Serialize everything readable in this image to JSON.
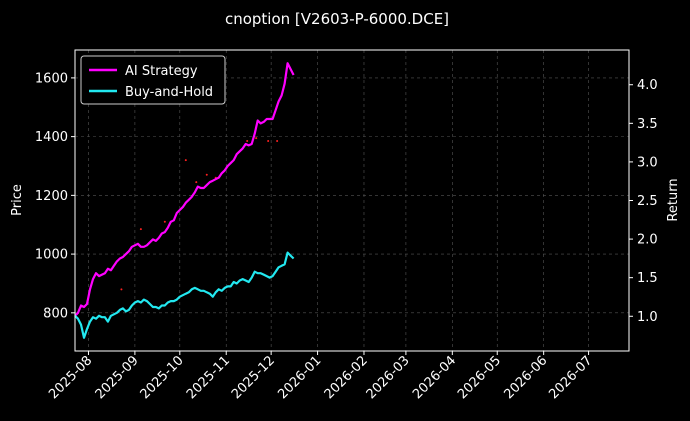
{
  "chart_data": {
    "type": "line",
    "title": "cnoption [V2603-P-6000.DCE]",
    "ylabel_left": "Price",
    "ylabel_right": "Return",
    "xlim": [
      "2025-07-23",
      "2026-07-28"
    ],
    "ylim_left": [
      670,
      1695
    ],
    "ylim_right": [
      0.55,
      4.45
    ],
    "x_ticks": [
      "2025-08",
      "2025-09",
      "2025-10",
      "2025-11",
      "2025-12",
      "2026-01",
      "2026-02",
      "2026-03",
      "2026-04",
      "2026-05",
      "2026-06",
      "2026-07"
    ],
    "y_ticks_left": [
      800,
      1000,
      1200,
      1400,
      1600
    ],
    "y_ticks_right": [
      "1.0",
      "1.5",
      "2.0",
      "2.5",
      "3.0",
      "3.5",
      "4.0"
    ],
    "grid": true,
    "legend_position": "top-left",
    "colors": {
      "ai": "#ff00ff",
      "bh": "#22e8f0",
      "scatter": "#ff2020",
      "grid": "#555555",
      "axes": "#ffffff",
      "background": "#000000"
    },
    "series": [
      {
        "name": "AI Strategy",
        "color": "#ff00ff",
        "x": [
          "2025-07-23",
          "2025-07-25",
          "2025-07-27",
          "2025-07-29",
          "2025-07-31",
          "2025-08-02",
          "2025-08-04",
          "2025-08-06",
          "2025-08-08",
          "2025-08-10",
          "2025-08-12",
          "2025-08-14",
          "2025-08-16",
          "2025-08-18",
          "2025-08-20",
          "2025-08-22",
          "2025-08-24",
          "2025-08-26",
          "2025-08-28",
          "2025-08-30",
          "2025-09-01",
          "2025-09-03",
          "2025-09-05",
          "2025-09-07",
          "2025-09-09",
          "2025-09-11",
          "2025-09-13",
          "2025-09-15",
          "2025-09-17",
          "2025-09-19",
          "2025-09-21",
          "2025-09-23",
          "2025-09-25",
          "2025-09-27",
          "2025-09-29",
          "2025-10-01",
          "2025-10-03",
          "2025-10-05",
          "2025-10-07",
          "2025-10-09",
          "2025-10-11",
          "2025-10-13",
          "2025-10-15",
          "2025-10-17",
          "2025-10-19",
          "2025-10-21",
          "2025-10-23",
          "2025-10-25",
          "2025-10-27",
          "2025-10-29",
          "2025-10-31",
          "2025-11-02",
          "2025-11-04",
          "2025-11-06",
          "2025-11-08",
          "2025-11-10",
          "2025-11-12",
          "2025-11-14",
          "2025-11-16",
          "2025-11-18",
          "2025-11-20",
          "2025-11-22",
          "2025-11-24",
          "2025-11-26",
          "2025-11-28",
          "2025-11-30",
          "2025-12-02",
          "2025-12-04",
          "2025-12-06",
          "2025-12-08",
          "2025-12-10",
          "2025-12-12",
          "2025-12-14",
          "2025-12-16"
        ],
        "y": [
          790,
          800,
          825,
          820,
          830,
          880,
          915,
          935,
          925,
          930,
          935,
          950,
          945,
          960,
          975,
          985,
          990,
          1000,
          1010,
          1025,
          1030,
          1035,
          1025,
          1025,
          1030,
          1040,
          1050,
          1045,
          1055,
          1070,
          1075,
          1090,
          1110,
          1115,
          1140,
          1150,
          1160,
          1175,
          1185,
          1195,
          1210,
          1230,
          1225,
          1225,
          1235,
          1245,
          1250,
          1255,
          1260,
          1275,
          1285,
          1300,
          1310,
          1320,
          1340,
          1350,
          1360,
          1375,
          1370,
          1375,
          1410,
          1455,
          1445,
          1450,
          1460,
          1460,
          1460,
          1490,
          1520,
          1540,
          1580,
          1650,
          1630,
          1610
        ]
      },
      {
        "name": "Buy-and-Hold",
        "color": "#22e8f0",
        "x": [
          "2025-07-23",
          "2025-07-25",
          "2025-07-27",
          "2025-07-29",
          "2025-07-31",
          "2025-08-02",
          "2025-08-04",
          "2025-08-06",
          "2025-08-08",
          "2025-08-10",
          "2025-08-12",
          "2025-08-14",
          "2025-08-16",
          "2025-08-18",
          "2025-08-20",
          "2025-08-22",
          "2025-08-24",
          "2025-08-26",
          "2025-08-28",
          "2025-08-30",
          "2025-09-01",
          "2025-09-03",
          "2025-09-05",
          "2025-09-07",
          "2025-09-09",
          "2025-09-11",
          "2025-09-13",
          "2025-09-15",
          "2025-09-17",
          "2025-09-19",
          "2025-09-21",
          "2025-09-23",
          "2025-09-25",
          "2025-09-27",
          "2025-09-29",
          "2025-10-01",
          "2025-10-03",
          "2025-10-05",
          "2025-10-07",
          "2025-10-09",
          "2025-10-11",
          "2025-10-13",
          "2025-10-15",
          "2025-10-17",
          "2025-10-19",
          "2025-10-21",
          "2025-10-23",
          "2025-10-25",
          "2025-10-27",
          "2025-10-29",
          "2025-10-31",
          "2025-11-02",
          "2025-11-04",
          "2025-11-06",
          "2025-11-08",
          "2025-11-10",
          "2025-11-12",
          "2025-11-14",
          "2025-11-16",
          "2025-11-18",
          "2025-11-20",
          "2025-11-22",
          "2025-11-24",
          "2025-11-26",
          "2025-11-28",
          "2025-11-30",
          "2025-12-02",
          "2025-12-04",
          "2025-12-06",
          "2025-12-08",
          "2025-12-10",
          "2025-12-12",
          "2025-12-14",
          "2025-12-16"
        ],
        "y": [
          790,
          780,
          760,
          715,
          745,
          770,
          785,
          780,
          790,
          785,
          785,
          770,
          790,
          795,
          800,
          810,
          815,
          805,
          810,
          825,
          835,
          840,
          835,
          845,
          840,
          830,
          820,
          820,
          815,
          825,
          825,
          835,
          840,
          840,
          845,
          855,
          860,
          865,
          870,
          880,
          885,
          880,
          875,
          875,
          870,
          865,
          855,
          870,
          880,
          875,
          885,
          890,
          890,
          905,
          900,
          910,
          915,
          910,
          905,
          920,
          940,
          935,
          935,
          930,
          925,
          920,
          925,
          940,
          955,
          960,
          965,
          1005,
          995,
          985
        ]
      }
    ],
    "scatter": {
      "color": "#ff2020",
      "x": [
        "2025-08-23",
        "2025-09-05",
        "2025-09-21",
        "2025-10-05",
        "2025-10-12",
        "2025-10-19",
        "2025-10-25",
        "2025-11-15",
        "2025-11-21",
        "2025-11-29",
        "2025-12-05"
      ],
      "y": [
        880,
        1085,
        1110,
        1320,
        1245,
        1270,
        1260,
        1385,
        1395,
        1385,
        1385
      ]
    }
  }
}
